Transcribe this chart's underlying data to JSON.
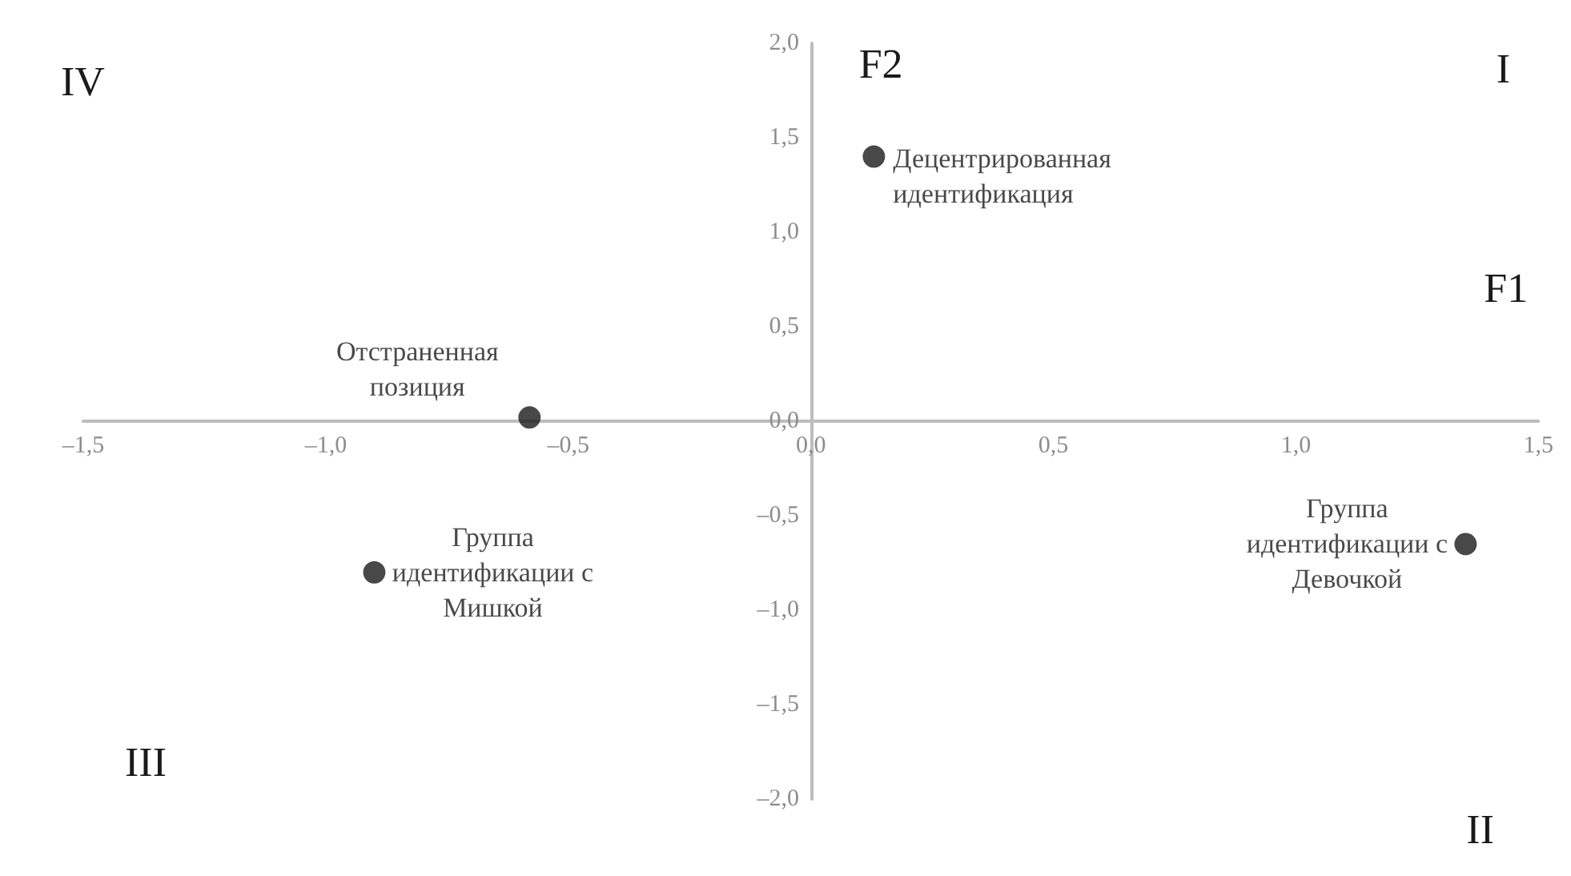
{
  "chart_data": {
    "type": "scatter",
    "xlabel": "F1",
    "ylabel": "F2",
    "x": [
      0.13,
      -0.58,
      -0.9,
      1.35
    ],
    "values": [
      1.4,
      0.02,
      -0.8,
      -0.65
    ],
    "color": "#1a1a1a",
    "marker": "circle",
    "grid": false,
    "xlim": [
      -1.5,
      1.5
    ],
    "ylim": [
      -2,
      2
    ],
    "xticks": [
      {
        "value": -1.5,
        "label": "–1,5"
      },
      {
        "value": -1,
        "label": "–1,0"
      },
      {
        "value": -0.5,
        "label": "–0,5"
      },
      {
        "value": 0,
        "label": "0,0"
      },
      {
        "value": 0.5,
        "label": "0,5"
      },
      {
        "value": 1,
        "label": "1,0"
      },
      {
        "value": 1.5,
        "label": "1,5"
      }
    ],
    "yticks": [
      {
        "value": -2,
        "label": "–2,0"
      },
      {
        "value": -1.5,
        "label": "–1,5"
      },
      {
        "value": -1,
        "label": "–1,0"
      },
      {
        "value": -0.5,
        "label": "–0,5"
      },
      {
        "value": 0,
        "label": "0,0"
      },
      {
        "value": 0.5,
        "label": "0,5"
      },
      {
        "value": 1,
        "label": "1,0"
      },
      {
        "value": 1.5,
        "label": "1,5"
      },
      {
        "value": 2,
        "label": "2,0"
      }
    ],
    "annotations": [
      {
        "text": "Децентрированная\nидентификация",
        "x": 0.13,
        "y": 1.4
      },
      {
        "text": "Отстраненная\nпозиция",
        "x": -0.58,
        "y": 0.02
      },
      {
        "text": "Группа\nидентификации с\nМишкой",
        "x": -0.9,
        "y": -0.8
      },
      {
        "text": "Группа\nидентификации с\nДевочкой",
        "x": 1.35,
        "y": -0.65
      },
      "I",
      "II",
      "III",
      "IV"
    ]
  }
}
